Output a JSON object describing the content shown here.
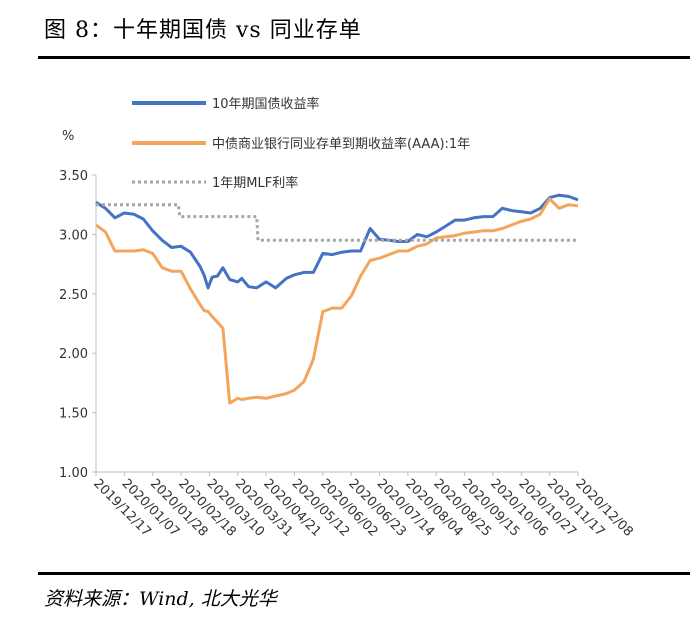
{
  "figure": {
    "title": "图 8：十年期国债 vs 同业存单",
    "source": "资料来源：Wind, 北大光华"
  },
  "chart_data": {
    "type": "line",
    "title": "",
    "xlabel": "",
    "ylabel": "%",
    "ylim": [
      1.0,
      3.5
    ],
    "yticks": [
      "1.00",
      "1.50",
      "2.00",
      "2.50",
      "3.00",
      "3.50"
    ],
    "xticks": [
      "2019/12/17",
      "2020/01/07",
      "2020/01/28",
      "2020/02/18",
      "2020/03/10",
      "2020/03/31",
      "2020/04/21",
      "2020/05/12",
      "2020/06/02",
      "2020/06/23",
      "2020/07/14",
      "2020/08/04",
      "2020/08/25",
      "2020/09/15",
      "2020/10/06",
      "2020/10/27",
      "2020/11/17",
      "2020/12/08"
    ],
    "xrange": [
      "2019/12/17",
      "2020/12/08"
    ],
    "legend_position": "top-left",
    "grid": false,
    "series": [
      {
        "name": "10年期国债收益率",
        "color": "#4472C4",
        "style": "solid",
        "points": [
          [
            "2019/12/17",
            3.27
          ],
          [
            "2019/12/24",
            3.22
          ],
          [
            "2019/12/31",
            3.14
          ],
          [
            "2020/01/07",
            3.18
          ],
          [
            "2020/01/14",
            3.17
          ],
          [
            "2020/01/21",
            3.13
          ],
          [
            "2020/01/28",
            3.03
          ],
          [
            "2020/02/04",
            2.95
          ],
          [
            "2020/02/11",
            2.89
          ],
          [
            "2020/02/18",
            2.9
          ],
          [
            "2020/02/25",
            2.85
          ],
          [
            "2020/03/03",
            2.73
          ],
          [
            "2020/03/06",
            2.66
          ],
          [
            "2020/03/09",
            2.55
          ],
          [
            "2020/03/12",
            2.64
          ],
          [
            "2020/03/16",
            2.65
          ],
          [
            "2020/03/20",
            2.72
          ],
          [
            "2020/03/25",
            2.62
          ],
          [
            "2020/03/31",
            2.6
          ],
          [
            "2020/04/03",
            2.63
          ],
          [
            "2020/04/08",
            2.56
          ],
          [
            "2020/04/14",
            2.55
          ],
          [
            "2020/04/21",
            2.6
          ],
          [
            "2020/04/28",
            2.55
          ],
          [
            "2020/05/06",
            2.63
          ],
          [
            "2020/05/12",
            2.66
          ],
          [
            "2020/05/19",
            2.68
          ],
          [
            "2020/05/26",
            2.68
          ],
          [
            "2020/06/02",
            2.84
          ],
          [
            "2020/06/09",
            2.83
          ],
          [
            "2020/06/16",
            2.85
          ],
          [
            "2020/06/23",
            2.86
          ],
          [
            "2020/06/30",
            2.86
          ],
          [
            "2020/07/07",
            3.05
          ],
          [
            "2020/07/14",
            2.96
          ],
          [
            "2020/07/21",
            2.95
          ],
          [
            "2020/07/28",
            2.94
          ],
          [
            "2020/08/04",
            2.94
          ],
          [
            "2020/08/11",
            3.0
          ],
          [
            "2020/08/18",
            2.98
          ],
          [
            "2020/08/25",
            3.02
          ],
          [
            "2020/09/01",
            3.07
          ],
          [
            "2020/09/08",
            3.12
          ],
          [
            "2020/09/15",
            3.12
          ],
          [
            "2020/09/22",
            3.14
          ],
          [
            "2020/09/29",
            3.15
          ],
          [
            "2020/10/06",
            3.15
          ],
          [
            "2020/10/13",
            3.22
          ],
          [
            "2020/10/20",
            3.2
          ],
          [
            "2020/10/27",
            3.19
          ],
          [
            "2020/11/03",
            3.18
          ],
          [
            "2020/11/10",
            3.22
          ],
          [
            "2020/11/17",
            3.31
          ],
          [
            "2020/11/24",
            3.33
          ],
          [
            "2020/12/01",
            3.32
          ],
          [
            "2020/12/08",
            3.29
          ]
        ]
      },
      {
        "name": "中债商业银行同业存单到期收益率(AAA):1年",
        "color": "#F4A55C",
        "style": "solid",
        "points": [
          [
            "2019/12/17",
            3.08
          ],
          [
            "2019/12/24",
            3.02
          ],
          [
            "2019/12/31",
            2.86
          ],
          [
            "2020/01/07",
            2.86
          ],
          [
            "2020/01/14",
            2.86
          ],
          [
            "2020/01/21",
            2.87
          ],
          [
            "2020/01/28",
            2.84
          ],
          [
            "2020/02/04",
            2.72
          ],
          [
            "2020/02/11",
            2.69
          ],
          [
            "2020/02/18",
            2.69
          ],
          [
            "2020/02/25",
            2.54
          ],
          [
            "2020/03/03",
            2.41
          ],
          [
            "2020/03/06",
            2.36
          ],
          [
            "2020/03/09",
            2.35
          ],
          [
            "2020/03/12",
            2.31
          ],
          [
            "2020/03/16",
            2.26
          ],
          [
            "2020/03/20",
            2.21
          ],
          [
            "2020/03/25",
            1.58
          ],
          [
            "2020/03/31",
            1.62
          ],
          [
            "2020/04/03",
            1.61
          ],
          [
            "2020/04/08",
            1.62
          ],
          [
            "2020/04/14",
            1.63
          ],
          [
            "2020/04/21",
            1.62
          ],
          [
            "2020/04/28",
            1.64
          ],
          [
            "2020/05/06",
            1.66
          ],
          [
            "2020/05/12",
            1.69
          ],
          [
            "2020/05/19",
            1.76
          ],
          [
            "2020/05/26",
            1.95
          ],
          [
            "2020/06/02",
            2.35
          ],
          [
            "2020/06/09",
            2.38
          ],
          [
            "2020/06/16",
            2.38
          ],
          [
            "2020/06/23",
            2.48
          ],
          [
            "2020/06/30",
            2.65
          ],
          [
            "2020/07/07",
            2.78
          ],
          [
            "2020/07/14",
            2.8
          ],
          [
            "2020/07/21",
            2.83
          ],
          [
            "2020/07/28",
            2.86
          ],
          [
            "2020/08/04",
            2.86
          ],
          [
            "2020/08/11",
            2.9
          ],
          [
            "2020/08/18",
            2.92
          ],
          [
            "2020/08/25",
            2.97
          ],
          [
            "2020/09/01",
            2.98
          ],
          [
            "2020/09/08",
            2.99
          ],
          [
            "2020/09/15",
            3.01
          ],
          [
            "2020/09/22",
            3.02
          ],
          [
            "2020/09/29",
            3.03
          ],
          [
            "2020/10/06",
            3.03
          ],
          [
            "2020/10/13",
            3.05
          ],
          [
            "2020/10/20",
            3.08
          ],
          [
            "2020/10/27",
            3.11
          ],
          [
            "2020/11/03",
            3.13
          ],
          [
            "2020/11/10",
            3.17
          ],
          [
            "2020/11/17",
            3.3
          ],
          [
            "2020/11/24",
            3.22
          ],
          [
            "2020/12/01",
            3.25
          ],
          [
            "2020/12/08",
            3.24
          ]
        ]
      },
      {
        "name": "1年期MLF利率",
        "color": "#A6A6A6",
        "style": "dotted",
        "points": [
          [
            "2019/12/17",
            3.25
          ],
          [
            "2020/02/16",
            3.25
          ],
          [
            "2020/02/17",
            3.15
          ],
          [
            "2020/04/14",
            3.15
          ],
          [
            "2020/04/15",
            2.95
          ],
          [
            "2020/12/08",
            2.95
          ]
        ]
      }
    ]
  }
}
